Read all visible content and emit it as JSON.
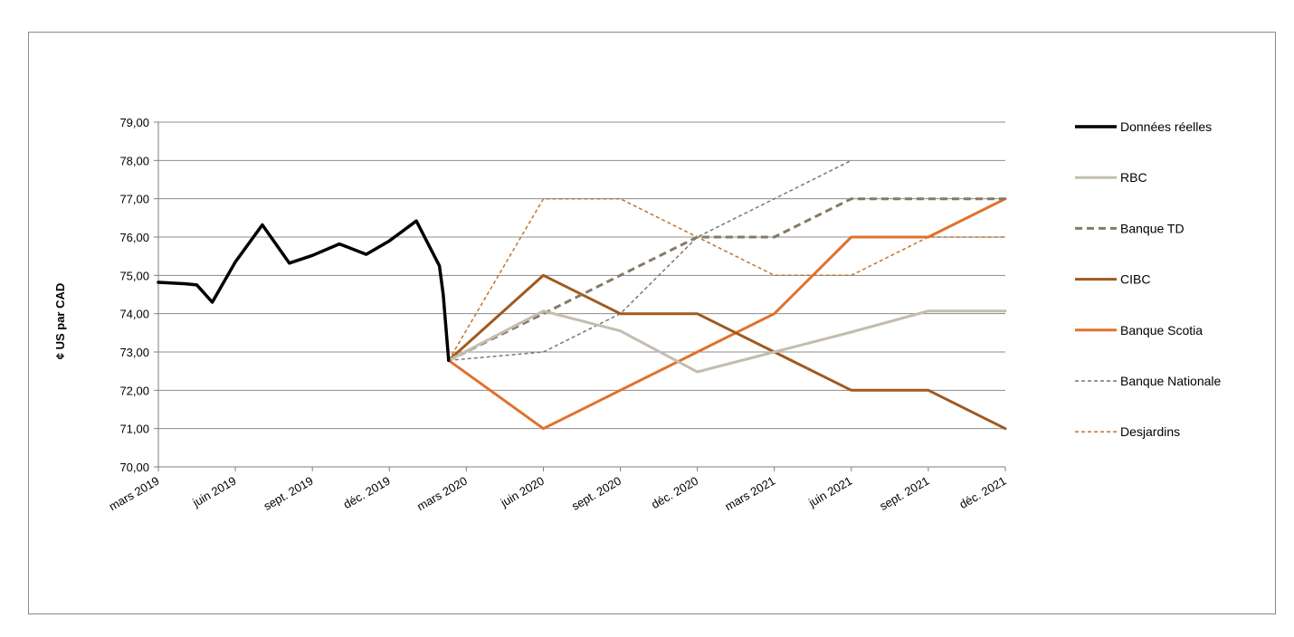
{
  "chart_data": {
    "type": "line",
    "title": "",
    "xlabel": "",
    "ylabel": "¢ US par CAD",
    "ylim": [
      70,
      79
    ],
    "yticks": [
      "70,00",
      "71,00",
      "72,00",
      "73,00",
      "74,00",
      "75,00",
      "76,00",
      "77,00",
      "78,00",
      "79,00"
    ],
    "x_categories": [
      "mars 2019",
      "juin 2019",
      "sept. 2019",
      "déc. 2019",
      "mars 2020",
      "juin 2020",
      "sept. 2020",
      "déc. 2020",
      "mars 2021",
      "juin 2021",
      "sept. 2021",
      "déc. 2021"
    ],
    "grid": "horizontal",
    "legend_position": "right",
    "series": [
      {
        "name": "Données réelles",
        "color": "#000000",
        "style": "solid-thick",
        "points": [
          [
            0,
            74.82
          ],
          [
            0.35,
            74.78
          ],
          [
            0.5,
            74.75
          ],
          [
            0.7,
            74.3
          ],
          [
            1.0,
            75.35
          ],
          [
            1.35,
            76.32
          ],
          [
            1.7,
            75.32
          ],
          [
            2.0,
            75.52
          ],
          [
            2.35,
            75.82
          ],
          [
            2.7,
            75.55
          ],
          [
            3.0,
            75.9
          ],
          [
            3.35,
            76.42
          ],
          [
            3.65,
            75.25
          ],
          [
            3.7,
            74.5
          ],
          [
            3.77,
            72.78
          ]
        ]
      },
      {
        "name": "RBC",
        "color": "#c4bdae",
        "style": "solid",
        "points": [
          [
            3.77,
            72.78
          ],
          [
            5,
            74.07
          ],
          [
            6,
            73.55
          ],
          [
            7,
            72.48
          ],
          [
            8,
            73.0
          ],
          [
            9,
            73.52
          ],
          [
            10,
            74.07
          ],
          [
            11,
            74.07
          ]
        ]
      },
      {
        "name": "Banque TD",
        "color": "#857a68",
        "style": "dashed",
        "points": [
          [
            3.77,
            72.78
          ],
          [
            5,
            74.0
          ],
          [
            6,
            75.0
          ],
          [
            7,
            76.0
          ],
          [
            8,
            76.0
          ],
          [
            9,
            77.0
          ],
          [
            10,
            77.0
          ],
          [
            11,
            77.0
          ]
        ]
      },
      {
        "name": "CIBC",
        "color": "#a0591f",
        "style": "solid",
        "points": [
          [
            3.77,
            72.78
          ],
          [
            5,
            75.0
          ],
          [
            6,
            74.0
          ],
          [
            7,
            74.0
          ],
          [
            8,
            73.0
          ],
          [
            9,
            72.0
          ],
          [
            10,
            72.0
          ],
          [
            11,
            71.0
          ]
        ]
      },
      {
        "name": "Banque Scotia",
        "color": "#e0712a",
        "style": "solid",
        "points": [
          [
            3.77,
            72.78
          ],
          [
            5,
            71.0
          ],
          [
            6,
            72.0
          ],
          [
            7,
            73.0
          ],
          [
            8,
            74.0
          ],
          [
            9,
            76.0
          ],
          [
            10,
            76.0
          ],
          [
            11,
            77.0
          ]
        ]
      },
      {
        "name": "Banque Nationale",
        "color": "#777777",
        "style": "dotted",
        "points": [
          [
            3.77,
            72.78
          ],
          [
            5,
            73.0
          ],
          [
            6,
            74.0
          ],
          [
            7,
            76.0
          ],
          [
            8,
            77.0
          ],
          [
            9,
            78.0
          ]
        ]
      },
      {
        "name": "Desjardins",
        "color": "#c2732e",
        "style": "dotted",
        "points": [
          [
            3.77,
            72.78
          ],
          [
            5,
            77.0
          ],
          [
            6,
            77.0
          ],
          [
            7,
            76.0
          ],
          [
            8,
            75.0
          ],
          [
            9,
            75.0
          ],
          [
            10,
            76.0
          ],
          [
            11,
            76.0
          ]
        ]
      }
    ]
  }
}
